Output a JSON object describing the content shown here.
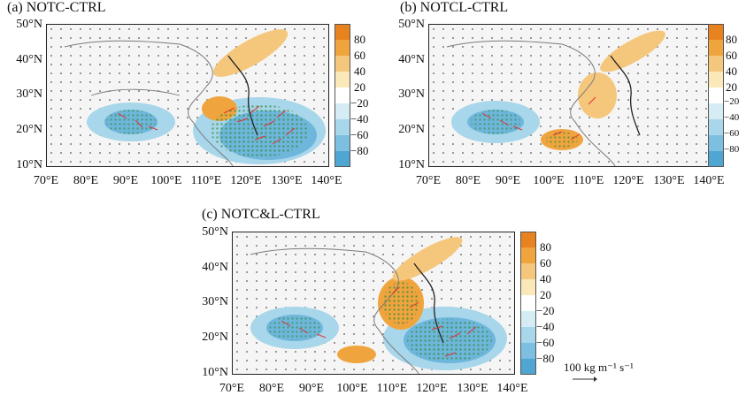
{
  "panels": [
    {
      "title": "(a) NOTC-CTRL"
    },
    {
      "title": "(b) NOTCL-CTRL"
    },
    {
      "title": "(c) NOTC&L-CTRL"
    }
  ],
  "axes": {
    "lat_labels": [
      "50°N",
      "40°N",
      "30°N",
      "20°N",
      "10°N"
    ],
    "lon_labels": [
      "70°E",
      "80°E",
      "90°E",
      "100°E",
      "110°E",
      "120°E",
      "130°E",
      "140°E"
    ]
  },
  "colorbar": {
    "labels": [
      "80",
      "60",
      "40",
      "20",
      "−20",
      "−40",
      "−60",
      "−80"
    ],
    "colors": [
      "#e8821e",
      "#f0a43e",
      "#f5c77c",
      "#fbe8b8",
      "#ffffff",
      "#d6ecf5",
      "#a8d6ea",
      "#7cbfe0",
      "#4fa6d3"
    ]
  },
  "reference_vector": {
    "label": "100 kg m⁻¹ s⁻¹"
  },
  "colors": {
    "positive": "#f0a43e",
    "negative": "#6fb6dc",
    "arrow_sig": "#e2312f",
    "significance": "#2e8b3a",
    "coast": "#7a7a7a",
    "border": "#2a2a2a"
  }
}
